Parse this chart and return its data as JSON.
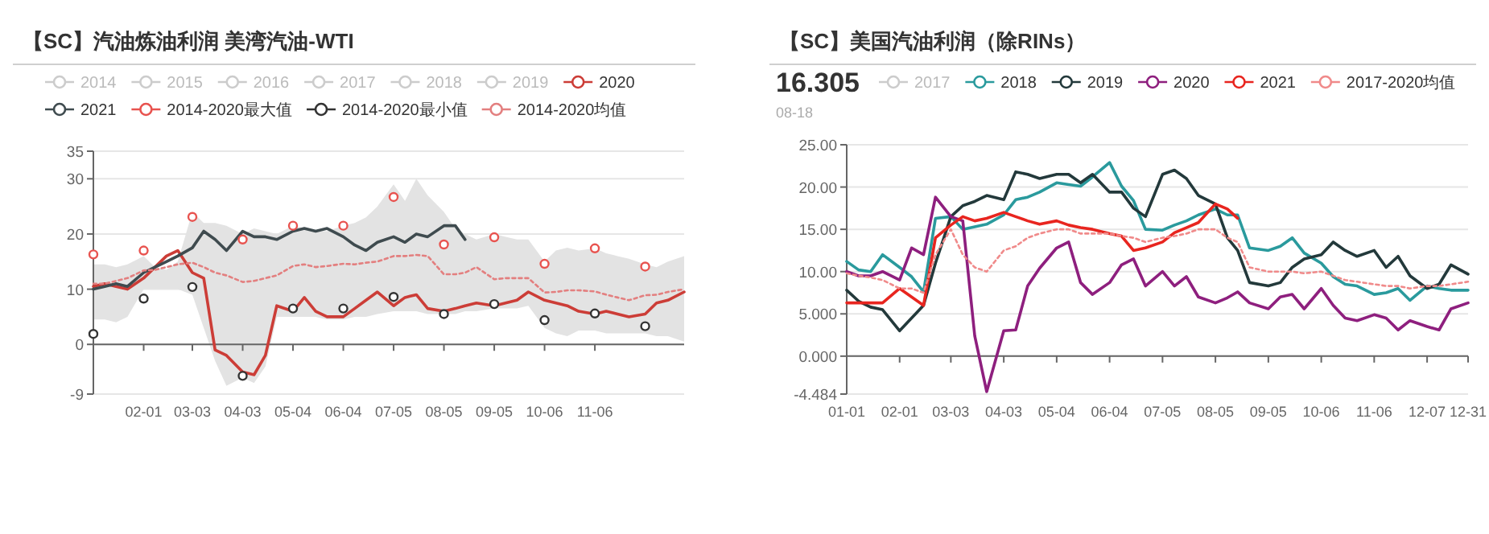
{
  "chart_data": [
    {
      "type": "line",
      "title": "【SC】汽油炼油利润 美湾汽油-WTI",
      "legend": "top",
      "grid": "y",
      "x": [
        "--01-01",
        "--01-08",
        "--01-15",
        "--01-22",
        "--02-01",
        "--02-08",
        "--02-15",
        "--02-22",
        "--03-03",
        "--03-10",
        "--03-17",
        "--03-24",
        "--04-03",
        "--04-10",
        "--04-17",
        "--04-24",
        "--05-04",
        "--05-11",
        "--05-18",
        "--05-25",
        "--06-04",
        "--06-11",
        "--06-18",
        "--06-25",
        "--07-05",
        "--07-12",
        "--07-19",
        "--07-26",
        "--08-05",
        "--08-12",
        "--08-18",
        "--08-25",
        "--09-05",
        "--09-12",
        "--09-19",
        "--09-26",
        "--10-06",
        "--10-13",
        "--10-20",
        "--10-27",
        "--11-06",
        "--11-13",
        "--11-20",
        "--11-27",
        "--12-07",
        "--12-14",
        "--12-21",
        "--12-31"
      ],
      "xlim": [
        "--01-01",
        "--12-31"
      ],
      "xticks": [
        {
          "value": "--02-01",
          "label": "02-01"
        },
        {
          "value": "--03-03",
          "label": "03-03"
        },
        {
          "value": "--04-03",
          "label": "04-03"
        },
        {
          "value": "--05-04",
          "label": "05-04"
        },
        {
          "value": "--06-04",
          "label": "06-04"
        },
        {
          "value": "--07-05",
          "label": "07-05"
        },
        {
          "value": "--08-05",
          "label": "08-05"
        },
        {
          "value": "--09-05",
          "label": "09-05"
        },
        {
          "value": "--10-06",
          "label": "10-06"
        },
        {
          "value": "--11-06",
          "label": "11-06"
        }
      ],
      "ylim": [
        -9,
        35
      ],
      "yticks": [
        -9,
        0,
        10,
        20,
        30,
        35
      ],
      "series": [
        {
          "name": "2014",
          "color": "#cccccc",
          "values": [
            null,
            null,
            null,
            null,
            null,
            null,
            null,
            null,
            null,
            null,
            null,
            null,
            null,
            null,
            null,
            null,
            null,
            null,
            null,
            null,
            null,
            null,
            null,
            null,
            null,
            null,
            null,
            null,
            null,
            null,
            null,
            null,
            null,
            null,
            null,
            null,
            null,
            null,
            null,
            null,
            null,
            null,
            null,
            null,
            null,
            null,
            null,
            null
          ]
        },
        {
          "name": "2015",
          "color": "#cccccc",
          "values": [
            null,
            null,
            null,
            null,
            null,
            null,
            null,
            null,
            null,
            null,
            null,
            null,
            null,
            null,
            null,
            null,
            null,
            null,
            null,
            null,
            null,
            null,
            null,
            null,
            null,
            null,
            null,
            null,
            null,
            null,
            null,
            null,
            null,
            null,
            null,
            null,
            null,
            null,
            null,
            null,
            null,
            null,
            null,
            null,
            null,
            null,
            null,
            null
          ]
        },
        {
          "name": "2016",
          "color": "#cccccc",
          "values": [
            null,
            null,
            null,
            null,
            null,
            null,
            null,
            null,
            null,
            null,
            null,
            null,
            null,
            null,
            null,
            null,
            null,
            null,
            null,
            null,
            null,
            null,
            null,
            null,
            null,
            null,
            null,
            null,
            null,
            null,
            null,
            null,
            null,
            null,
            null,
            null,
            null,
            null,
            null,
            null,
            null,
            null,
            null,
            null,
            null,
            null,
            null,
            null
          ]
        },
        {
          "name": "2017",
          "color": "#cccccc",
          "values": [
            null,
            null,
            null,
            null,
            null,
            null,
            null,
            null,
            null,
            null,
            null,
            null,
            null,
            null,
            null,
            null,
            null,
            null,
            null,
            null,
            null,
            null,
            null,
            null,
            null,
            null,
            null,
            null,
            null,
            null,
            null,
            null,
            null,
            null,
            null,
            null,
            null,
            null,
            null,
            null,
            null,
            null,
            null,
            null,
            null,
            null,
            null,
            null
          ]
        },
        {
          "name": "2018",
          "color": "#cccccc",
          "values": [
            null,
            null,
            null,
            null,
            null,
            null,
            null,
            null,
            null,
            null,
            null,
            null,
            null,
            null,
            null,
            null,
            null,
            null,
            null,
            null,
            null,
            null,
            null,
            null,
            null,
            null,
            null,
            null,
            null,
            null,
            null,
            null,
            null,
            null,
            null,
            null,
            null,
            null,
            null,
            null,
            null,
            null,
            null,
            null,
            null,
            null,
            null,
            null
          ]
        },
        {
          "name": "2019",
          "color": "#cccccc",
          "values": [
            null,
            null,
            null,
            null,
            null,
            null,
            null,
            null,
            null,
            null,
            null,
            null,
            null,
            null,
            null,
            null,
            null,
            null,
            null,
            null,
            null,
            null,
            null,
            null,
            null,
            null,
            null,
            null,
            null,
            null,
            null,
            null,
            null,
            null,
            null,
            null,
            null,
            null,
            null,
            null,
            null,
            null,
            null,
            null,
            null,
            null,
            null,
            null
          ]
        },
        {
          "name": "2020",
          "color": "#cc3d37",
          "values": [
            10.5,
            11,
            10.5,
            10,
            12,
            14,
            16,
            17,
            13,
            12,
            -1,
            -2,
            -5,
            -5.5,
            -2,
            7,
            6,
            8.5,
            6,
            5,
            5,
            6.5,
            8,
            9.5,
            7,
            8.5,
            9,
            6.5,
            6,
            6.5,
            7,
            7.5,
            7,
            7.5,
            8,
            9.5,
            8,
            7.5,
            7,
            6,
            5.5,
            6,
            5.5,
            5,
            5.5,
            7.5,
            8,
            9.5
          ]
        },
        {
          "name": "2021",
          "color": "#3f4b4f",
          "values": [
            10,
            10.5,
            11,
            10.5,
            13,
            14,
            15,
            16,
            17.5,
            20.5,
            19,
            17,
            20.5,
            19.5,
            19.5,
            19,
            20.5,
            21,
            20.5,
            21,
            19.5,
            18,
            17,
            18.5,
            19.5,
            18.5,
            20,
            19.5,
            21.5,
            21.5,
            19,
            null,
            null,
            null,
            null,
            null,
            null,
            null,
            null,
            null,
            null,
            null,
            null,
            null,
            null,
            null,
            null,
            null
          ]
        },
        {
          "name": "2014-2020最大值",
          "type": "scatter",
          "marker": "circle",
          "color": "#e8534f",
          "x": [
            "--01-01",
            "--02-01",
            "--03-03",
            "--04-03",
            "--05-04",
            "--06-04",
            "--07-05",
            "--08-05",
            "--09-05",
            "--10-06",
            "--11-06",
            "--12-07"
          ],
          "values": [
            16.3,
            17,
            23.1,
            19,
            21.5,
            21.5,
            26.7,
            18.1,
            19.4,
            14.6,
            17.4,
            14.1
          ]
        },
        {
          "name": "2014-2020最小值",
          "type": "scatter",
          "marker": "circle",
          "color": "#333333",
          "x": [
            "--01-01",
            "--02-01",
            "--03-03",
            "--04-03",
            "--05-04",
            "--06-04",
            "--07-05",
            "--08-05",
            "--09-05",
            "--10-06",
            "--11-06",
            "--12-07"
          ],
          "values": [
            1.9,
            8.3,
            10.4,
            -5.7,
            6.5,
            6.5,
            8.6,
            5.5,
            7.3,
            4.4,
            5.6,
            3.3
          ]
        },
        {
          "name": "2014-2020均值",
          "color": "#e37f7f",
          "line_style": "dotted",
          "values": [
            11,
            11,
            11.5,
            12,
            13.4,
            13.5,
            14,
            14.5,
            14.8,
            14,
            13,
            12.5,
            11.3,
            11.5,
            12,
            12.5,
            14.2,
            14.5,
            14,
            14.2,
            14.6,
            14.5,
            14.8,
            15,
            16,
            16,
            16.2,
            16,
            12.7,
            12.7,
            13,
            14,
            11.8,
            12,
            12,
            12,
            9.4,
            9.5,
            9.8,
            9.8,
            9.6,
            9,
            8.5,
            8,
            8.9,
            9,
            9.5,
            10
          ],
          "upper": [
            14.5,
            14.5,
            14,
            14.5,
            16,
            14,
            13.5,
            15,
            24,
            22,
            22,
            21.5,
            20,
            21,
            20.5,
            20,
            21.5,
            21,
            20.5,
            20.5,
            21.5,
            22,
            23,
            25,
            29,
            26,
            30,
            27,
            24,
            21,
            20,
            19,
            20,
            19.5,
            19,
            19,
            15,
            17,
            17.5,
            17,
            17.4,
            16.5,
            16,
            15.5,
            14.5,
            14,
            15,
            16
          ],
          "lower": [
            4.5,
            4.5,
            4,
            5,
            10,
            10,
            10,
            10,
            9,
            3,
            -3,
            -7.5,
            -6,
            -7,
            -4,
            5,
            5,
            5,
            5,
            4.5,
            4.5,
            5,
            5,
            5.5,
            6,
            6,
            6,
            5.5,
            5.5,
            5.5,
            6,
            6,
            6.5,
            6.5,
            6.5,
            7,
            3,
            2,
            1.5,
            2.5,
            2.5,
            2,
            2,
            2,
            2,
            1.5,
            1.5,
            0.5
          ]
        }
      ]
    },
    {
      "type": "line",
      "title": "【SC】美国汽油利润（除RINs）",
      "legend": "top",
      "grid": "y",
      "annotations": [
        "16.305",
        "08-18"
      ],
      "x": [
        "--01-01",
        "--01-08",
        "--01-15",
        "--01-22",
        "--02-01",
        "--02-08",
        "--02-15",
        "--02-22",
        "--03-03",
        "--03-10",
        "--03-17",
        "--03-24",
        "--04-03",
        "--04-10",
        "--04-17",
        "--04-24",
        "--05-04",
        "--05-11",
        "--05-18",
        "--05-25",
        "--06-04",
        "--06-11",
        "--06-18",
        "--06-25",
        "--07-05",
        "--07-12",
        "--07-19",
        "--07-26",
        "--08-05",
        "--08-12",
        "--08-18",
        "--08-25",
        "--09-05",
        "--09-12",
        "--09-19",
        "--09-26",
        "--10-06",
        "--10-13",
        "--10-20",
        "--10-27",
        "--11-06",
        "--11-13",
        "--11-20",
        "--11-27",
        "--12-07",
        "--12-14",
        "--12-21",
        "--12-31"
      ],
      "xlim": [
        "--01-01",
        "--12-31"
      ],
      "xticks": [
        {
          "value": "--01-01",
          "label": "01-01"
        },
        {
          "value": "--02-01",
          "label": "02-01"
        },
        {
          "value": "--03-03",
          "label": "03-03"
        },
        {
          "value": "--04-03",
          "label": "04-03"
        },
        {
          "value": "--05-04",
          "label": "05-04"
        },
        {
          "value": "--06-04",
          "label": "06-04"
        },
        {
          "value": "--07-05",
          "label": "07-05"
        },
        {
          "value": "--08-05",
          "label": "08-05"
        },
        {
          "value": "--09-05",
          "label": "09-05"
        },
        {
          "value": "--10-06",
          "label": "10-06"
        },
        {
          "value": "--11-06",
          "label": "11-06"
        },
        {
          "value": "--12-07",
          "label": "12-07"
        },
        {
          "value": "--12-31",
          "label": "12-31"
        }
      ],
      "ylim": [
        -4.484,
        25
      ],
      "yticks": [
        {
          "value": -4.484,
          "label": "-4.484"
        },
        {
          "value": 0,
          "label": "0.000"
        },
        {
          "value": 5,
          "label": "5.000"
        },
        {
          "value": 10,
          "label": "10.00"
        },
        {
          "value": 15,
          "label": "15.00"
        },
        {
          "value": 20,
          "label": "20.00"
        },
        {
          "value": 25,
          "label": "25.00"
        }
      ],
      "series": [
        {
          "name": "2017",
          "color": "#cccccc",
          "values": [
            null,
            null,
            null,
            null,
            null,
            null,
            null,
            null,
            null,
            null,
            null,
            null,
            null,
            null,
            null,
            null,
            null,
            null,
            null,
            null,
            null,
            null,
            null,
            null,
            null,
            null,
            null,
            null,
            null,
            null,
            null,
            null,
            null,
            null,
            null,
            null,
            null,
            null,
            null,
            null,
            null,
            null,
            null,
            null,
            null,
            null,
            null,
            null
          ]
        },
        {
          "name": "2018",
          "color": "#2a9a9d",
          "values": [
            11.2,
            10.2,
            10,
            12,
            10.5,
            9.4,
            7.6,
            16.3,
            16.5,
            15,
            15.3,
            15.6,
            16.7,
            18.5,
            18.8,
            19.4,
            20.5,
            20.3,
            20.1,
            21.2,
            22.9,
            20.1,
            18.4,
            15,
            14.9,
            15.5,
            16,
            16.7,
            17.4,
            16.7,
            16.7,
            12.8,
            12.5,
            13,
            14,
            12.2,
            11,
            9.4,
            8.5,
            8.3,
            7.3,
            7.5,
            8,
            6.6,
            8.3,
            8,
            7.8,
            7.8
          ]
        },
        {
          "name": "2019",
          "color": "#23393b",
          "values": [
            7.8,
            6.5,
            5.8,
            5.5,
            3,
            4.5,
            6,
            11,
            16.5,
            17.8,
            18.3,
            19,
            18.5,
            21.8,
            21.5,
            21,
            21.5,
            21.5,
            20.5,
            21.5,
            19.4,
            19.4,
            17.5,
            16.5,
            21.5,
            22,
            21,
            19,
            18,
            14,
            12.5,
            8.7,
            8.3,
            8.7,
            10.5,
            11.5,
            12,
            13.5,
            12.5,
            11.8,
            12.5,
            10.5,
            11.8,
            9.5,
            8,
            8.5,
            10.8,
            9.7
          ]
        },
        {
          "name": "2020",
          "color": "#8e1f7e",
          "values": [
            10,
            9.5,
            9.5,
            10,
            9,
            12.8,
            12,
            18.8,
            16.5,
            16,
            2.4,
            -4.2,
            3,
            3.1,
            8.3,
            10.4,
            12.8,
            13.5,
            8.7,
            7.3,
            8.7,
            10.8,
            11.5,
            8.3,
            10,
            8.3,
            9.4,
            7,
            6.3,
            6.9,
            7.6,
            6.3,
            5.6,
            7,
            7.3,
            5.6,
            8,
            6,
            4.5,
            4.2,
            4.9,
            4.5,
            3.1,
            4.2,
            3.5,
            3.1,
            5.6,
            6.3
          ]
        },
        {
          "name": "2021",
          "color": "#e8251f",
          "values": [
            6.3,
            6.3,
            6.3,
            6.3,
            8,
            7,
            6,
            14,
            15.5,
            16.5,
            16,
            16.3,
            17,
            16.5,
            16,
            15.6,
            16,
            15.5,
            15.2,
            15,
            14.5,
            14.2,
            12.5,
            12.8,
            13.5,
            14.6,
            15.2,
            15.8,
            18,
            17.4,
            16.305,
            null,
            null,
            null,
            null,
            null,
            null,
            null,
            null,
            null,
            null,
            null,
            null,
            null,
            null,
            null,
            null,
            null
          ]
        },
        {
          "name": "2017-2020均值",
          "color": "#f08a8a",
          "line_style": "dotted",
          "values": [
            9.8,
            9.5,
            9.3,
            9,
            8,
            8,
            7.5,
            12,
            15,
            12,
            10.5,
            10,
            12.5,
            13,
            14,
            14.5,
            15,
            15,
            14.5,
            14.5,
            14.5,
            14.2,
            14,
            13.5,
            14,
            14.2,
            14.5,
            15,
            15,
            14,
            13.5,
            10.5,
            10,
            10,
            10,
            9.8,
            10,
            9.5,
            9,
            8.8,
            8.5,
            8.3,
            8.3,
            8,
            8.3,
            8.3,
            8.5,
            8.8
          ]
        }
      ]
    }
  ]
}
